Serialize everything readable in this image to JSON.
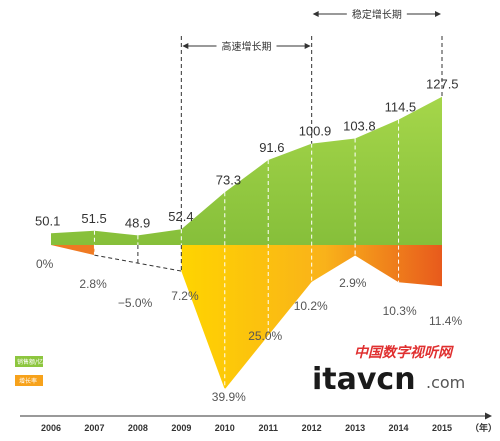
{
  "chart_data": {
    "type": "area",
    "categories": [
      "2006",
      "2007",
      "2008",
      "2009",
      "2010",
      "2011",
      "2012",
      "2013",
      "2014",
      "2015"
    ],
    "x_unit": "（年）",
    "series": [
      {
        "name": "销售额/亿",
        "color": "#8dc63f",
        "values": [
          50.1,
          51.5,
          48.9,
          52.4,
          73.3,
          91.6,
          100.9,
          103.8,
          114.5,
          127.5
        ],
        "labels": [
          "50.1",
          "51.5",
          "48.9",
          "52.4",
          "73.3",
          "91.6",
          "100.9",
          "103.8",
          "114.5",
          "127.5"
        ]
      },
      {
        "name": "增长率",
        "color": "#f7a21b",
        "values": [
          0,
          2.8,
          -5.0,
          7.2,
          39.9,
          25.0,
          10.2,
          2.9,
          10.3,
          11.4
        ],
        "labels": [
          "0%",
          "2.8%",
          "−5.0%",
          "7.2%",
          "39.9%",
          "25.0%",
          "10.2%",
          "2.9%",
          "10.3%",
          "11.4%"
        ]
      }
    ],
    "phases": [
      {
        "label": "高速增长期",
        "from": "2009",
        "to": "2012"
      },
      {
        "label": "稳定增长期",
        "from": "2012",
        "to": "2015"
      }
    ],
    "grid": false,
    "legend_position": "left"
  },
  "watermark": {
    "cn": "中国数字视听网",
    "brand": "itavcn",
    "suffix": ".com"
  }
}
